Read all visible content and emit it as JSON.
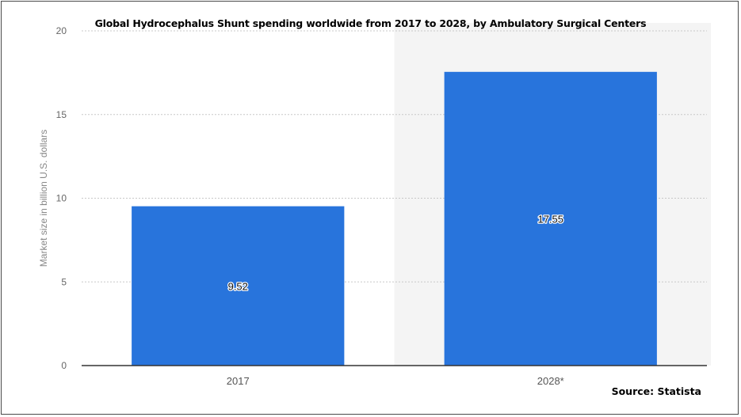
{
  "chart_data": {
    "type": "bar",
    "title": "Global Hydrocephalus Shunt spending worldwide from 2017 to 2028, by Ambulatory Surgical Centers",
    "categories": [
      "2017",
      "2028*"
    ],
    "values": [
      9.52,
      17.55
    ],
    "data_labels": [
      "9.52",
      "17.55"
    ],
    "ylabel": "Market size in billion U.S. dollars",
    "xlabel": "",
    "ylim": [
      0,
      20
    ],
    "yticks": [
      "0",
      "5",
      "10",
      "15",
      "20"
    ],
    "grid": true,
    "bar_color": "#2874dc",
    "forecast_shading": true
  },
  "source": "Source: Statista"
}
